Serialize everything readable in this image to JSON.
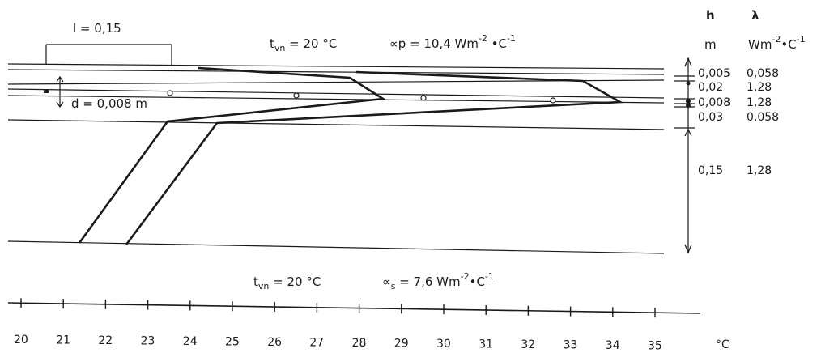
{
  "top": {
    "l_label": "l = 0,15",
    "t_label": "t",
    "t_sub": "vn",
    "t_value": " = 20 °C",
    "alpha_p_label": "∝p = 10,4 Wm",
    "alpha_p_exp": "-2",
    "alpha_p_unit": " •C",
    "alpha_p_exp2": "-1"
  },
  "d_label": "d = 0,008 m",
  "table": {
    "h_header": "h",
    "lambda_header": "λ",
    "h_unit": "m",
    "lambda_unit": "Wm",
    "lambda_unit_exp": "-2",
    "lambda_unit_mid": "•C",
    "lambda_unit_exp2": "-1",
    "rows": [
      {
        "h": "0,005",
        "lambda": "0,058"
      },
      {
        "h": "0,02",
        "lambda": "1,28"
      },
      {
        "h": "0,008",
        "lambda": "1,28"
      },
      {
        "h": "0,03",
        "lambda": "0,058"
      },
      {
        "h": "0,15",
        "lambda": "1,28"
      }
    ]
  },
  "bottom": {
    "t_label": "t",
    "t_sub": "vn",
    "t_value": " = 20 °C",
    "alpha_s_label": "∝",
    "alpha_s_sub": "s",
    "alpha_s_value": " = 7,6 Wm",
    "alpha_s_exp": "-2",
    "alpha_s_unit": "•C",
    "alpha_s_exp2": "-1"
  },
  "axis": {
    "ticks": [
      "20",
      "21",
      "22",
      "23",
      "24",
      "25",
      "26",
      "27",
      "28",
      "29",
      "30",
      "31",
      "32",
      "33",
      "34",
      "35"
    ],
    "unit": "°C"
  }
}
